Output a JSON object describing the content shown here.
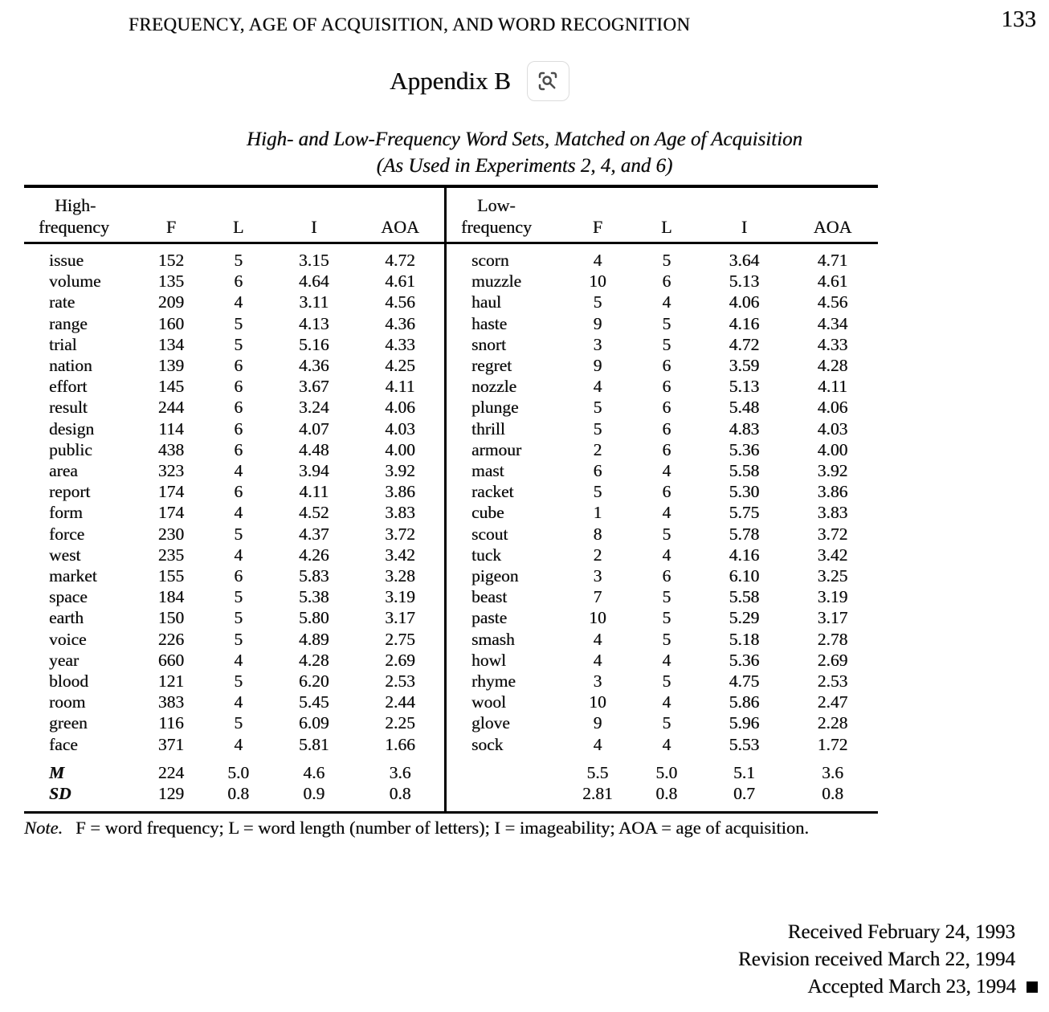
{
  "header": {
    "running_head": "FREQUENCY, AGE OF ACQUISITION, AND WORD RECOGNITION",
    "page_number": "133",
    "appendix_title": "Appendix B"
  },
  "icons": {
    "zoom_button": "magnifier-scan-icon"
  },
  "table": {
    "title_line1": "High- and Low-Frequency Word Sets, Matched on Age of Acquisition",
    "title_line2": "(As Used in Experiments 2, 4, and 6)",
    "left": {
      "columns": {
        "word_line1": "High-",
        "word_line2": "frequency",
        "f": "F",
        "l": "L",
        "i": "I",
        "aoa": "AOA"
      },
      "rows": [
        [
          "issue",
          "152",
          "5",
          "3.15",
          "4.72"
        ],
        [
          "volume",
          "135",
          "6",
          "4.64",
          "4.61"
        ],
        [
          "rate",
          "209",
          "4",
          "3.11",
          "4.56"
        ],
        [
          "range",
          "160",
          "5",
          "4.13",
          "4.36"
        ],
        [
          "trial",
          "134",
          "5",
          "5.16",
          "4.33"
        ],
        [
          "nation",
          "139",
          "6",
          "4.36",
          "4.25"
        ],
        [
          "effort",
          "145",
          "6",
          "3.67",
          "4.11"
        ],
        [
          "result",
          "244",
          "6",
          "3.24",
          "4.06"
        ],
        [
          "design",
          "114",
          "6",
          "4.07",
          "4.03"
        ],
        [
          "public",
          "438",
          "6",
          "4.48",
          "4.00"
        ],
        [
          "area",
          "323",
          "4",
          "3.94",
          "3.92"
        ],
        [
          "report",
          "174",
          "6",
          "4.11",
          "3.86"
        ],
        [
          "form",
          "174",
          "4",
          "4.52",
          "3.83"
        ],
        [
          "force",
          "230",
          "5",
          "4.37",
          "3.72"
        ],
        [
          "west",
          "235",
          "4",
          "4.26",
          "3.42"
        ],
        [
          "market",
          "155",
          "6",
          "5.83",
          "3.28"
        ],
        [
          "space",
          "184",
          "5",
          "5.38",
          "3.19"
        ],
        [
          "earth",
          "150",
          "5",
          "5.80",
          "3.17"
        ],
        [
          "voice",
          "226",
          "5",
          "4.89",
          "2.75"
        ],
        [
          "year",
          "660",
          "4",
          "4.28",
          "2.69"
        ],
        [
          "blood",
          "121",
          "5",
          "6.20",
          "2.53"
        ],
        [
          "room",
          "383",
          "4",
          "5.45",
          "2.44"
        ],
        [
          "green",
          "116",
          "5",
          "6.09",
          "2.25"
        ],
        [
          "face",
          "371",
          "4",
          "5.81",
          "1.66"
        ]
      ],
      "m": {
        "label": "M",
        "values": [
          "224",
          "5.0",
          "4.6",
          "3.6"
        ]
      },
      "sd": {
        "label": "SD",
        "values": [
          "129",
          "0.8",
          "0.9",
          "0.8"
        ]
      }
    },
    "right": {
      "columns": {
        "word_line1": "Low-",
        "word_line2": "frequency",
        "f": "F",
        "l": "L",
        "i": "I",
        "aoa": "AOA"
      },
      "rows": [
        [
          "scorn",
          "4",
          "5",
          "3.64",
          "4.71"
        ],
        [
          "muzzle",
          "10",
          "6",
          "5.13",
          "4.61"
        ],
        [
          "haul",
          "5",
          "4",
          "4.06",
          "4.56"
        ],
        [
          "haste",
          "9",
          "5",
          "4.16",
          "4.34"
        ],
        [
          "snort",
          "3",
          "5",
          "4.72",
          "4.33"
        ],
        [
          "regret",
          "9",
          "6",
          "3.59",
          "4.28"
        ],
        [
          "nozzle",
          "4",
          "6",
          "5.13",
          "4.11"
        ],
        [
          "plunge",
          "5",
          "6",
          "5.48",
          "4.06"
        ],
        [
          "thrill",
          "5",
          "6",
          "4.83",
          "4.03"
        ],
        [
          "armour",
          "2",
          "6",
          "5.36",
          "4.00"
        ],
        [
          "mast",
          "6",
          "4",
          "5.58",
          "3.92"
        ],
        [
          "racket",
          "5",
          "6",
          "5.30",
          "3.86"
        ],
        [
          "cube",
          "1",
          "4",
          "5.75",
          "3.83"
        ],
        [
          "scout",
          "8",
          "5",
          "5.78",
          "3.72"
        ],
        [
          "tuck",
          "2",
          "4",
          "4.16",
          "3.42"
        ],
        [
          "pigeon",
          "3",
          "6",
          "6.10",
          "3.25"
        ],
        [
          "beast",
          "7",
          "5",
          "5.58",
          "3.19"
        ],
        [
          "paste",
          "10",
          "5",
          "5.29",
          "3.17"
        ],
        [
          "smash",
          "4",
          "5",
          "5.18",
          "2.78"
        ],
        [
          "howl",
          "4",
          "4",
          "5.36",
          "2.69"
        ],
        [
          "rhyme",
          "3",
          "5",
          "4.75",
          "2.53"
        ],
        [
          "wool",
          "10",
          "4",
          "5.86",
          "2.47"
        ],
        [
          "glove",
          "9",
          "5",
          "5.96",
          "2.28"
        ],
        [
          "sock",
          "4",
          "4",
          "5.53",
          "1.72"
        ]
      ],
      "m": {
        "label": "",
        "values": [
          "5.5",
          "5.0",
          "5.1",
          "3.6"
        ]
      },
      "sd": {
        "label": "",
        "values": [
          "2.81",
          "0.8",
          "0.7",
          "0.8"
        ]
      }
    }
  },
  "note": {
    "label": "Note.",
    "text": "F = word frequency; L = word length (number of letters); I = imageability; AOA = age of acquisition."
  },
  "received": {
    "line1": "Received February 24, 1993",
    "line2": "Revision received March 22, 1994",
    "line3": "Accepted March 23, 1994"
  }
}
